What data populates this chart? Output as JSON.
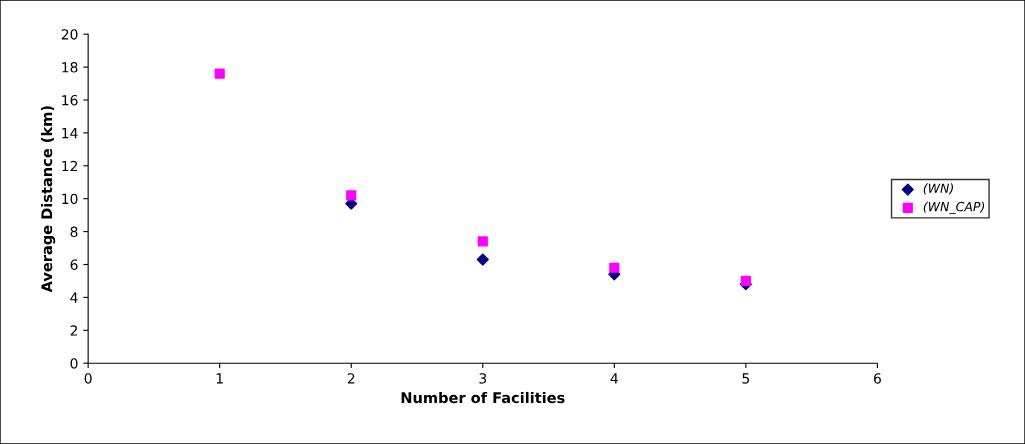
{
  "chart_data": {
    "type": "scatter",
    "xlabel": "Number of Facilities",
    "ylabel": "Average Distance (km)",
    "x": [
      1,
      2,
      3,
      4,
      5
    ],
    "series": [
      {
        "name": "(WN)",
        "color": "#000080",
        "marker": "diamond",
        "values": [
          null,
          9.7,
          6.3,
          5.4,
          4.8
        ]
      },
      {
        "name": "(WN_CAP)",
        "color": "#ff00ff",
        "marker": "square",
        "values": [
          17.6,
          10.2,
          7.4,
          5.8,
          5.0
        ]
      }
    ],
    "xlim": [
      0,
      6
    ],
    "xticks": [
      0,
      1,
      2,
      3,
      4,
      5,
      6
    ],
    "ylim": [
      0,
      20
    ],
    "yticks": [
      0,
      2,
      4,
      6,
      8,
      10,
      12,
      14,
      16,
      18,
      20
    ],
    "grid": false,
    "legend": "right"
  }
}
